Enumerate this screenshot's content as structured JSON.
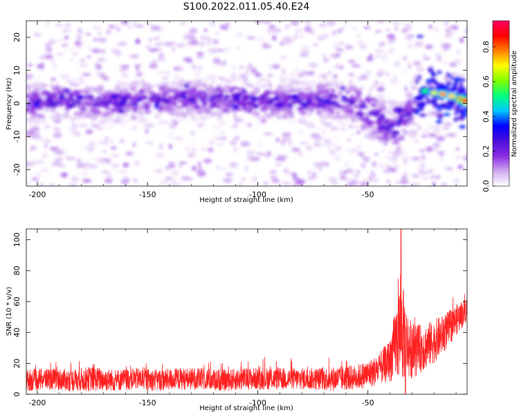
{
  "title": "S100.2022.011.05.40.E24",
  "chart_data": [
    {
      "type": "heatmap",
      "xlabel": "Height of straight line (km)",
      "ylabel": "Frequency (Hz)",
      "xlim": [
        -205,
        -5
      ],
      "ylim": [
        -25,
        25
      ],
      "xticks": [
        -200,
        -150,
        -100,
        -50
      ],
      "yticks": [
        -20,
        -10,
        0,
        10,
        20
      ],
      "colorbar": {
        "label": "Normalized spectral amplitude",
        "range": [
          0,
          0.95
        ],
        "ticks": [
          0.0,
          0.2,
          0.4,
          0.6,
          0.8
        ],
        "colors": [
          "#ffffff",
          "#cfa8f0",
          "#8a2be2",
          "#4b0fdc",
          "#0000ff",
          "#00c8ff",
          "#00ff80",
          "#80ff00",
          "#ffff00",
          "#ff8000",
          "#ff0000",
          "#ff0060"
        ]
      },
      "ridge": [
        {
          "x": -204,
          "y": 0.0
        },
        {
          "x": -190,
          "y": 1.0
        },
        {
          "x": -170,
          "y": 0.5
        },
        {
          "x": -150,
          "y": 1.0
        },
        {
          "x": -130,
          "y": 1.5
        },
        {
          "x": -110,
          "y": 1.0
        },
        {
          "x": -90,
          "y": 0.5
        },
        {
          "x": -70,
          "y": 1.0
        },
        {
          "x": -55,
          "y": 0.0
        },
        {
          "x": -45,
          "y": -5.0
        },
        {
          "x": -38,
          "y": -9.0
        },
        {
          "x": -33,
          "y": -5.0
        },
        {
          "x": -28,
          "y": 0.0
        },
        {
          "x": -22,
          "y": 3.5
        },
        {
          "x": -15,
          "y": 2.5
        },
        {
          "x": -8,
          "y": 1.0
        },
        {
          "x": -5,
          "y": 0.5
        }
      ],
      "peaks": [
        {
          "x": -24,
          "y": 3.8,
          "amp": 0.55
        },
        {
          "x": -20,
          "y": 3.2,
          "amp": 0.7
        },
        {
          "x": -16,
          "y": 2.8,
          "amp": 0.8
        },
        {
          "x": -12,
          "y": 2.2,
          "amp": 0.75
        },
        {
          "x": -8,
          "y": 1.4,
          "amp": 0.85
        },
        {
          "x": -6,
          "y": 0.8,
          "amp": 0.95
        },
        {
          "x": -90,
          "y": -0.5,
          "amp": 0.3
        },
        {
          "x": -130,
          "y": 1.0,
          "amp": 0.28
        },
        {
          "x": -165,
          "y": 2.0,
          "amp": 0.3
        },
        {
          "x": -36,
          "y": -2.0,
          "amp": 0.3
        }
      ]
    },
    {
      "type": "line",
      "xlabel": "Height of straight line (km)",
      "ylabel": "SNR (10 * v/v)",
      "xlim": [
        -205,
        -5
      ],
      "ylim": [
        0,
        107
      ],
      "xticks": [
        -200,
        -150,
        -100,
        -50
      ],
      "yticks": [
        0,
        20,
        40,
        60,
        80,
        100
      ],
      "series": [
        {
          "color": "#ff2020",
          "x": [
            -205,
            -195,
            -185,
            -175,
            -165,
            -155,
            -145,
            -135,
            -125,
            -115,
            -105,
            -95,
            -85,
            -75,
            -65,
            -55,
            -50,
            -45,
            -40,
            -37,
            -35,
            -32,
            -30,
            -25,
            -20,
            -15,
            -10,
            -5
          ],
          "mean": [
            9,
            10,
            9,
            10,
            9,
            10,
            9,
            10,
            10,
            9,
            10,
            10,
            10,
            10,
            10,
            11,
            13,
            16,
            22,
            35,
            42,
            32,
            28,
            30,
            34,
            40,
            48,
            55
          ],
          "spread": [
            7,
            7,
            7,
            8,
            7,
            7,
            7,
            7,
            7,
            7,
            7,
            7,
            7,
            7,
            8,
            8,
            9,
            10,
            14,
            25,
            35,
            22,
            18,
            15,
            14,
            12,
            10,
            8
          ],
          "peak": [
            {
              "x": -35,
              "y": 107
            },
            {
              "x": -33,
              "y": 0
            }
          ]
        }
      ]
    }
  ]
}
